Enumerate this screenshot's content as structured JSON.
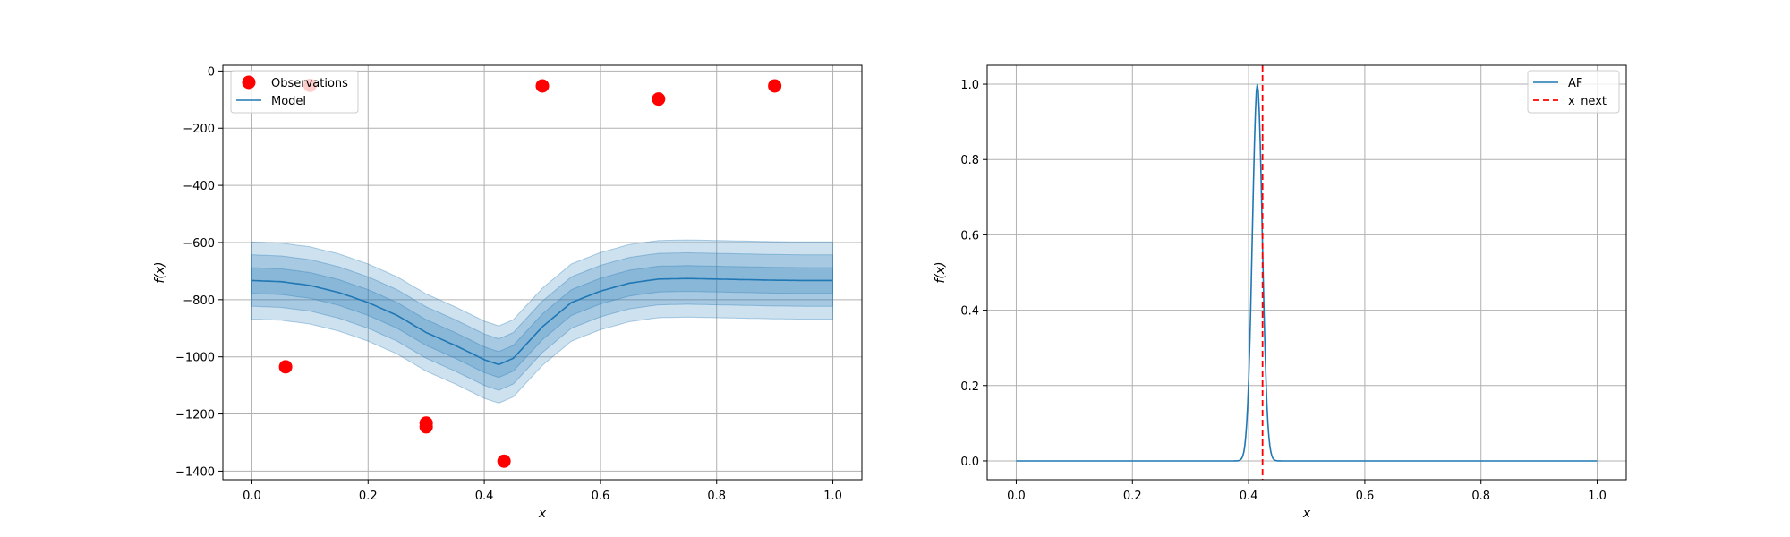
{
  "chart_data": [
    {
      "type": "line",
      "xlabel": "x",
      "ylabel": "f(x)",
      "xlim": [
        -0.05,
        1.05
      ],
      "ylim": [
        -1430,
        20
      ],
      "xticks": [
        0.0,
        0.2,
        0.4,
        0.6,
        0.8,
        1.0
      ],
      "xtick_labels": [
        "0.0",
        "0.2",
        "0.4",
        "0.6",
        "0.8",
        "1.0"
      ],
      "yticks": [
        0,
        -200,
        -400,
        -600,
        -800,
        -1000,
        -1200,
        -1400
      ],
      "ytick_labels": [
        "0",
        "−200",
        "−400",
        "−600",
        "−800",
        "−1000",
        "−1200",
        "−1400"
      ],
      "grid": true,
      "legend_position": "top-left",
      "legend": [
        "Observations",
        "Model"
      ],
      "colors": {
        "model": "#1f77b4",
        "observations": "#ff0000"
      },
      "model": {
        "x": [
          0.0,
          0.05,
          0.1,
          0.15,
          0.2,
          0.25,
          0.3,
          0.35,
          0.4,
          0.425,
          0.45,
          0.5,
          0.55,
          0.6,
          0.65,
          0.7,
          0.75,
          0.8,
          0.85,
          0.9,
          0.95,
          1.0
        ],
        "mean": [
          -733,
          -737,
          -750,
          -775,
          -810,
          -855,
          -915,
          -960,
          -1010,
          -1027,
          -1005,
          -895,
          -810,
          -770,
          -742,
          -728,
          -726,
          -728,
          -730,
          -732,
          -733,
          -733
        ],
        "band_widths": [
          45,
          90,
          135
        ]
      },
      "observations": {
        "x": [
          0.058,
          0.1,
          0.3,
          0.3,
          0.434,
          0.5,
          0.7,
          0.9
        ],
        "y": [
          -1035,
          -50,
          -1232,
          -1245,
          -1365,
          -52,
          -98,
          -52
        ]
      }
    },
    {
      "type": "line",
      "xlabel": "x",
      "ylabel": "f(x)",
      "xlim": [
        -0.05,
        1.05
      ],
      "ylim": [
        -0.05,
        1.05
      ],
      "xticks": [
        0.0,
        0.2,
        0.4,
        0.6,
        0.8,
        1.0
      ],
      "xtick_labels": [
        "0.0",
        "0.2",
        "0.4",
        "0.6",
        "0.8",
        "1.0"
      ],
      "yticks": [
        0.0,
        0.2,
        0.4,
        0.6,
        0.8,
        1.0
      ],
      "ytick_labels": [
        "0.0",
        "0.2",
        "0.4",
        "0.6",
        "0.8",
        "1.0"
      ],
      "grid": true,
      "legend_position": "top-right",
      "legend": [
        "AF",
        "x_next"
      ],
      "colors": {
        "af": "#1f77b4",
        "x_next": "#ff0000"
      },
      "af": {
        "peak_x": 0.415,
        "sigma": 0.0085,
        "peak_y": 1.0
      },
      "x_next": 0.424
    }
  ]
}
